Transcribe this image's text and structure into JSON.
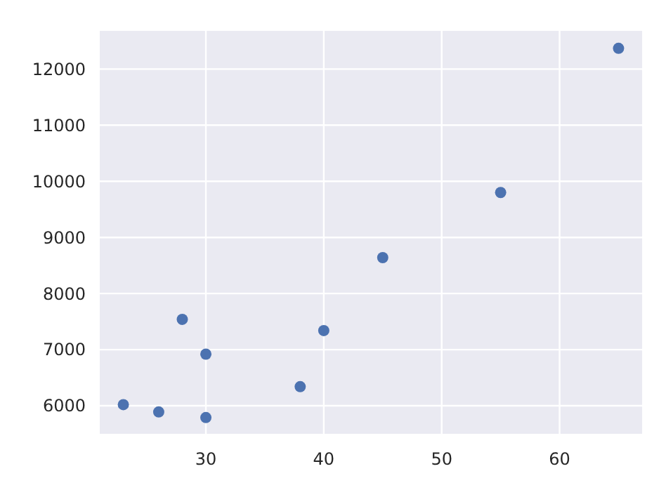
{
  "chart_data": {
    "type": "scatter",
    "x": [
      23,
      26,
      28,
      30,
      30,
      38,
      40,
      45,
      55,
      65
    ],
    "values": [
      6020,
      5890,
      7540,
      6920,
      5790,
      6340,
      7340,
      8640,
      9800,
      12370
    ],
    "color": "#4c72b0",
    "marker": "circle",
    "grid": true,
    "xlim": [
      21,
      67
    ],
    "xticks": [
      30,
      40,
      50,
      60
    ],
    "ylim": [
      5500,
      12680
    ],
    "yticks": [
      6000,
      7000,
      8000,
      9000,
      10000,
      11000,
      12000
    ]
  }
}
